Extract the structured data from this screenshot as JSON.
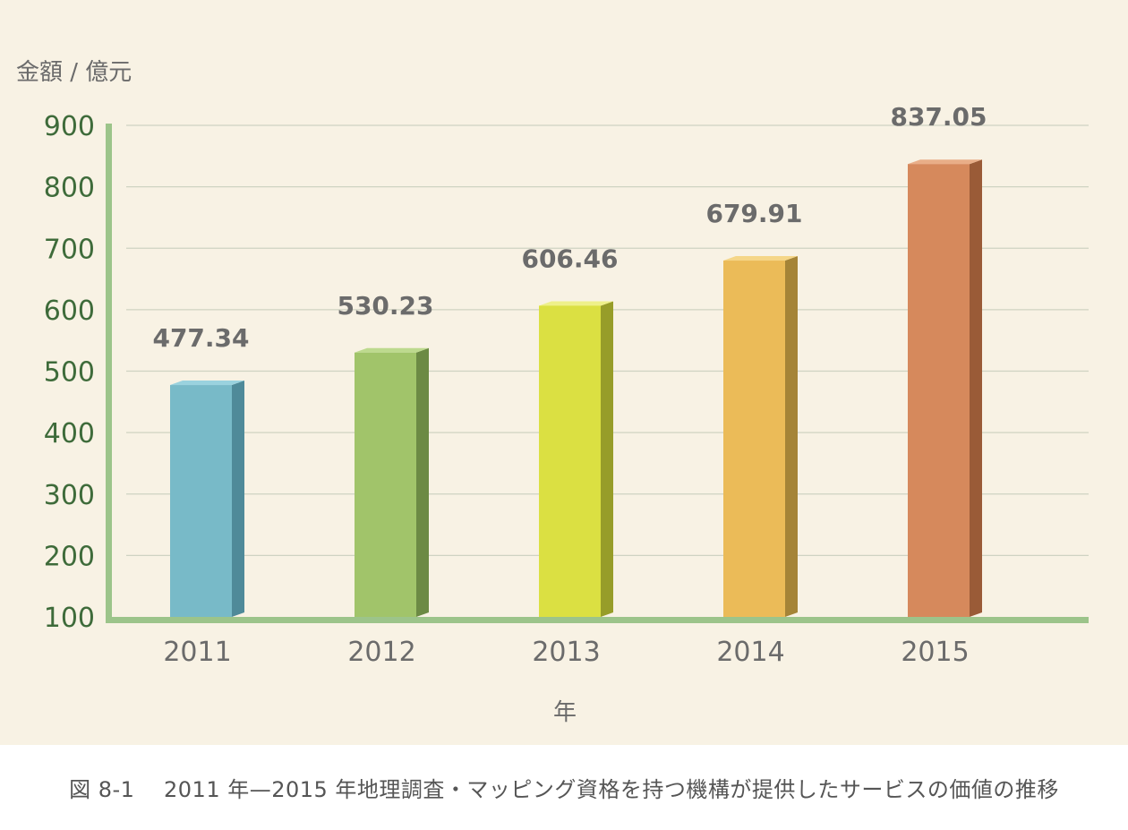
{
  "chart_data": {
    "type": "bar",
    "categories": [
      "2011",
      "2012",
      "2013",
      "2014",
      "2015"
    ],
    "values": [
      477.34,
      530.23,
      606.46,
      679.91,
      837.05
    ],
    "value_labels": [
      "477.34",
      "530.23",
      "606.46",
      "679.91",
      "837.05"
    ],
    "title": "",
    "xlabel": "年",
    "ylabel": "金額 / 億元",
    "ylim": [
      100,
      900
    ],
    "yticks": [
      100,
      200,
      300,
      400,
      500,
      600,
      700,
      800,
      900
    ],
    "grid": true,
    "legend": "none",
    "colors": {
      "background": "#f8f2e4",
      "axis": "#9cc48a",
      "grid": "#cfd3c2",
      "tick_text": "#3e6b3a",
      "bars": [
        {
          "front": "#78bac8",
          "side": "#4f8a99",
          "top": "#9ad2de"
        },
        {
          "front": "#a1c46a",
          "side": "#6c8a44",
          "top": "#bdda8e"
        },
        {
          "front": "#dbe042",
          "side": "#979d29",
          "top": "#eef08a"
        },
        {
          "front": "#ebbb58",
          "side": "#a58437",
          "top": "#f5d688"
        },
        {
          "front": "#d6895c",
          "side": "#9a5b37",
          "top": "#e9ae88"
        }
      ]
    }
  },
  "caption": "図 8-1　 2011 年—2015 年地理調査・マッピング資格を持つ機構が提供したサービスの価値の推移"
}
